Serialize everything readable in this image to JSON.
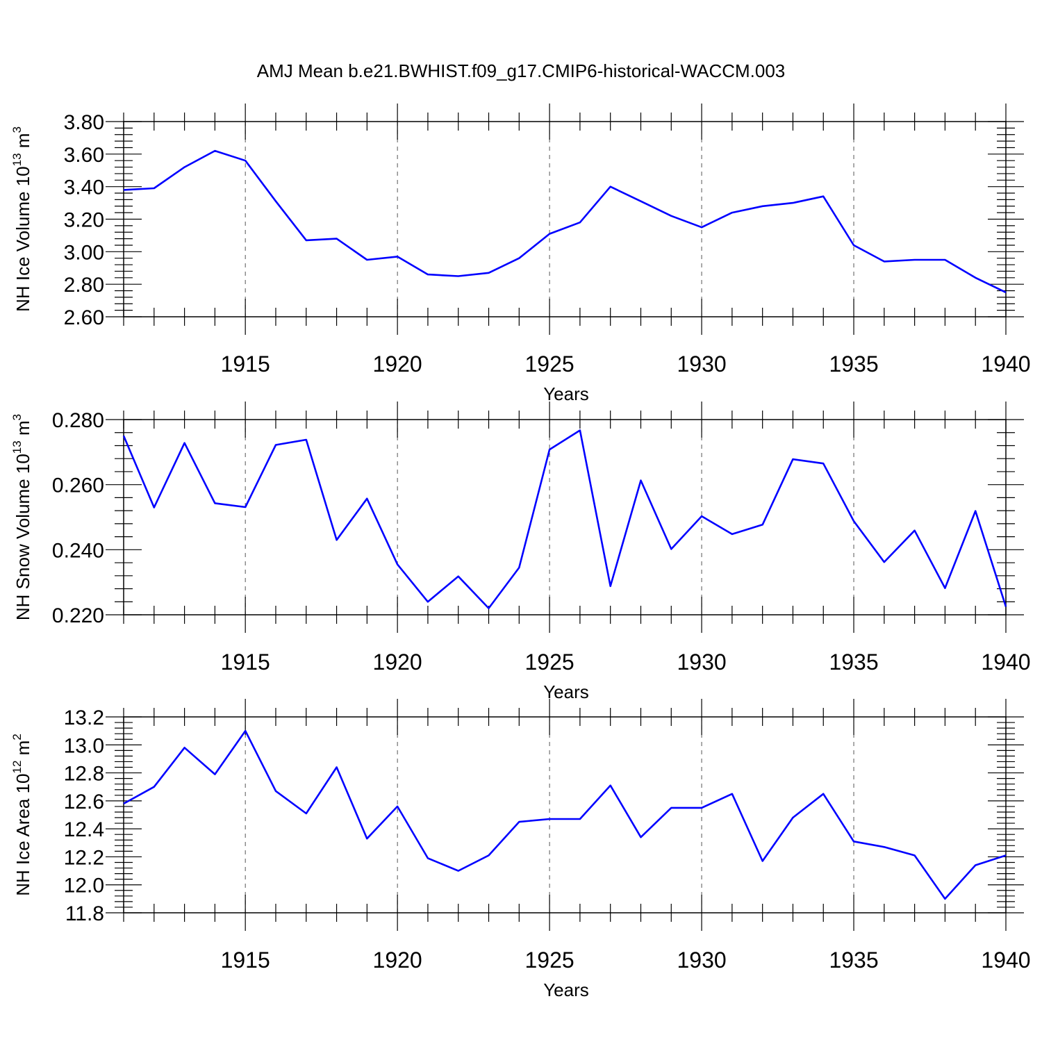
{
  "title": "AMJ Mean b.e21.BWHIST.f09_g17.CMIP6-historical-WACCM.003",
  "chart_data": [
    {
      "type": "line",
      "ylabel": "NH Ice Volume 10",
      "ylabel_exp": "13",
      "ylabel_unit": " m",
      "ylabel_unit_exp": "3",
      "xlabel": "Years",
      "xlim": [
        1911,
        1940
      ],
      "ylim": [
        2.6,
        3.8
      ],
      "yticks": [
        2.6,
        2.8,
        3.0,
        3.2,
        3.4,
        3.6,
        3.8
      ],
      "ytick_labels": [
        "2.60",
        "2.80",
        "3.00",
        "3.20",
        "3.40",
        "3.60",
        "3.80"
      ],
      "xticks": [
        1915,
        1920,
        1925,
        1930,
        1935,
        1940
      ],
      "xtick_labels": [
        "1915",
        "1920",
        "1925",
        "1930",
        "1935",
        "1940"
      ],
      "grid": "vertical dashed at labeled years",
      "color": "#0000ff",
      "x": [
        1911,
        1912,
        1913,
        1914,
        1915,
        1916,
        1917,
        1918,
        1919,
        1920,
        1921,
        1922,
        1923,
        1924,
        1925,
        1926,
        1927,
        1928,
        1929,
        1930,
        1931,
        1932,
        1933,
        1934,
        1935,
        1936,
        1937,
        1938,
        1939,
        1940
      ],
      "values": [
        3.38,
        3.39,
        3.52,
        3.62,
        3.56,
        3.31,
        3.07,
        3.08,
        2.95,
        2.97,
        2.86,
        2.85,
        2.87,
        2.96,
        3.11,
        3.18,
        3.4,
        3.31,
        3.22,
        3.15,
        3.24,
        3.28,
        3.3,
        3.34,
        3.04,
        2.94,
        2.95,
        2.95,
        2.84,
        2.75
      ]
    },
    {
      "type": "line",
      "ylabel": "NH Snow Volume 10",
      "ylabel_exp": "13",
      "ylabel_unit": " m",
      "ylabel_unit_exp": "3",
      "xlabel": "Years",
      "xlim": [
        1911,
        1940
      ],
      "ylim": [
        0.22,
        0.28
      ],
      "yticks": [
        0.22,
        0.24,
        0.26,
        0.28
      ],
      "ytick_labels": [
        "0.220",
        "0.240",
        "0.260",
        "0.280"
      ],
      "xticks": [
        1915,
        1920,
        1925,
        1930,
        1935,
        1940
      ],
      "xtick_labels": [
        "1915",
        "1920",
        "1925",
        "1930",
        "1935",
        "1940"
      ],
      "grid": "vertical dashed at labeled years",
      "color": "#0000ff",
      "x": [
        1911,
        1912,
        1913,
        1914,
        1915,
        1916,
        1917,
        1918,
        1919,
        1920,
        1921,
        1922,
        1923,
        1924,
        1925,
        1926,
        1927,
        1928,
        1929,
        1930,
        1931,
        1932,
        1933,
        1934,
        1935,
        1936,
        1937,
        1938,
        1939,
        1940
      ],
      "values": [
        0.275,
        0.253,
        0.2728,
        0.2543,
        0.2531,
        0.2722,
        0.2738,
        0.243,
        0.2557,
        0.2355,
        0.224,
        0.2318,
        0.222,
        0.2345,
        0.2708,
        0.2767,
        0.2288,
        0.2613,
        0.2402,
        0.2503,
        0.2448,
        0.2477,
        0.2678,
        0.2665,
        0.2488,
        0.2362,
        0.2459,
        0.2282,
        0.2519,
        0.2225
      ]
    },
    {
      "type": "line",
      "ylabel": "NH Ice Area 10",
      "ylabel_exp": "12",
      "ylabel_unit": " m",
      "ylabel_unit_exp": "2",
      "xlabel": "Years",
      "xlim": [
        1911,
        1940
      ],
      "ylim": [
        11.8,
        13.2
      ],
      "yticks": [
        11.8,
        12.0,
        12.2,
        12.4,
        12.6,
        12.8,
        13.0,
        13.2
      ],
      "ytick_labels": [
        "11.8",
        "12.0",
        "12.2",
        "12.4",
        "12.6",
        "12.8",
        "13.0",
        "13.2"
      ],
      "xticks": [
        1915,
        1920,
        1925,
        1930,
        1935,
        1940
      ],
      "xtick_labels": [
        "1915",
        "1920",
        "1925",
        "1930",
        "1935",
        "1940"
      ],
      "grid": "vertical dashed at labeled years",
      "color": "#0000ff",
      "x": [
        1911,
        1912,
        1913,
        1914,
        1915,
        1916,
        1917,
        1918,
        1919,
        1920,
        1921,
        1922,
        1923,
        1924,
        1925,
        1926,
        1927,
        1928,
        1929,
        1930,
        1931,
        1932,
        1933,
        1934,
        1935,
        1936,
        1937,
        1938,
        1939,
        1940
      ],
      "values": [
        12.58,
        12.7,
        12.98,
        12.79,
        13.1,
        12.67,
        12.51,
        12.84,
        12.33,
        12.56,
        12.19,
        12.1,
        12.21,
        12.45,
        12.47,
        12.47,
        12.71,
        12.34,
        12.55,
        12.55,
        12.65,
        12.17,
        12.48,
        12.65,
        12.31,
        12.27,
        12.21,
        11.9,
        12.14,
        12.21
      ]
    }
  ]
}
